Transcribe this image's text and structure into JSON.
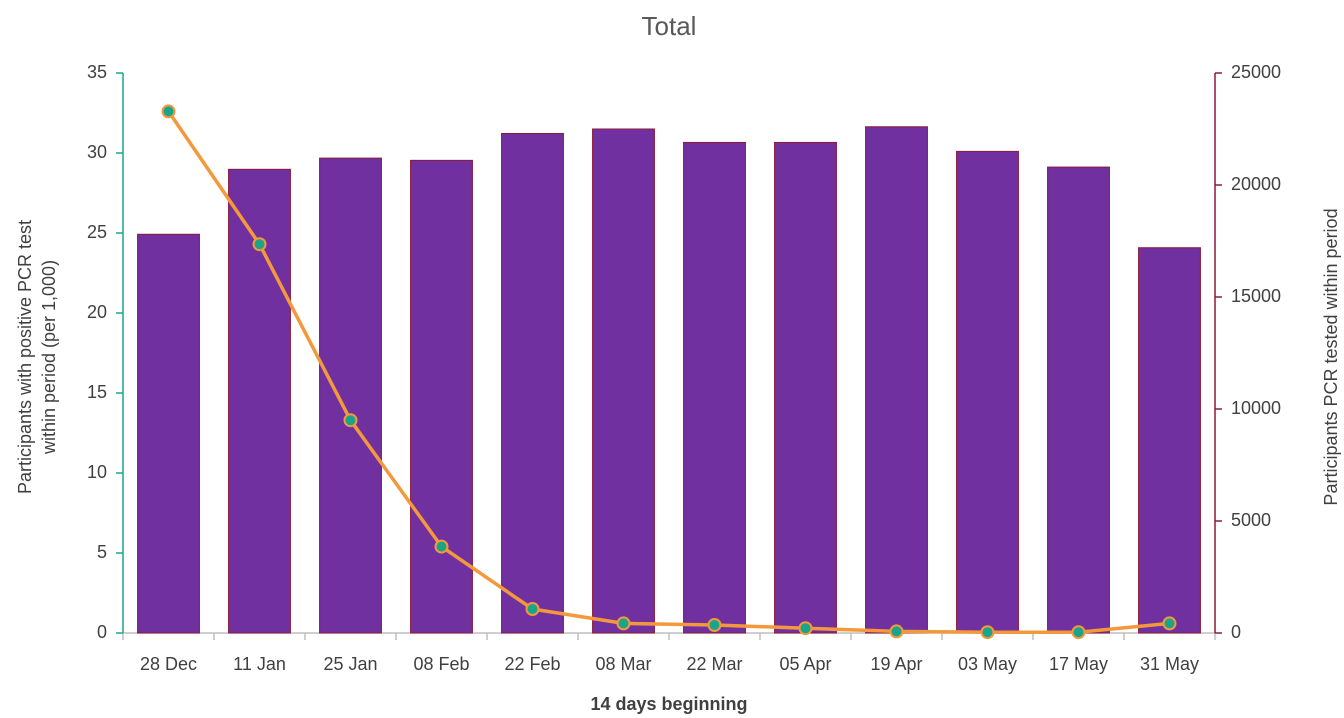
{
  "chart_data": {
    "type": "bar-line",
    "title": "Total",
    "xlabel": "14 days beginning",
    "ylabel": [
      "Participants with positive PCR test",
      "within period (per 1,000)"
    ],
    "y2label": "Participants PCR tested within period",
    "categories": [
      "28 Dec",
      "11 Jan",
      "25 Jan",
      "08 Feb",
      "22 Feb",
      "08 Mar",
      "22 Mar",
      "05 Apr",
      "19 Apr",
      "03 May",
      "17 May",
      "31 May"
    ],
    "series": [
      {
        "type": "bar",
        "axis": "y2",
        "color": "#7030a0",
        "edge_color": "#8b1a3a",
        "values": [
          17800,
          20700,
          21200,
          21100,
          22300,
          22500,
          21900,
          21900,
          22600,
          21500,
          20800,
          17200
        ]
      },
      {
        "type": "line",
        "axis": "y",
        "color": "#f4983c",
        "marker_color": "#1aa58a",
        "values": [
          32.6,
          24.3,
          13.3,
          5.4,
          1.5,
          0.6,
          0.5,
          0.3,
          0.1,
          0.05,
          0.05,
          0.6
        ]
      }
    ],
    "ylim": [
      0,
      35
    ],
    "yticks": [
      0,
      5,
      10,
      15,
      20,
      25,
      30,
      35
    ],
    "y2lim": [
      0,
      25000
    ],
    "y2ticks": [
      0,
      5000,
      10000,
      15000,
      20000,
      25000
    ],
    "y_axis_color": "#1aa58a",
    "y2_axis_color": "#8b1a3a"
  }
}
